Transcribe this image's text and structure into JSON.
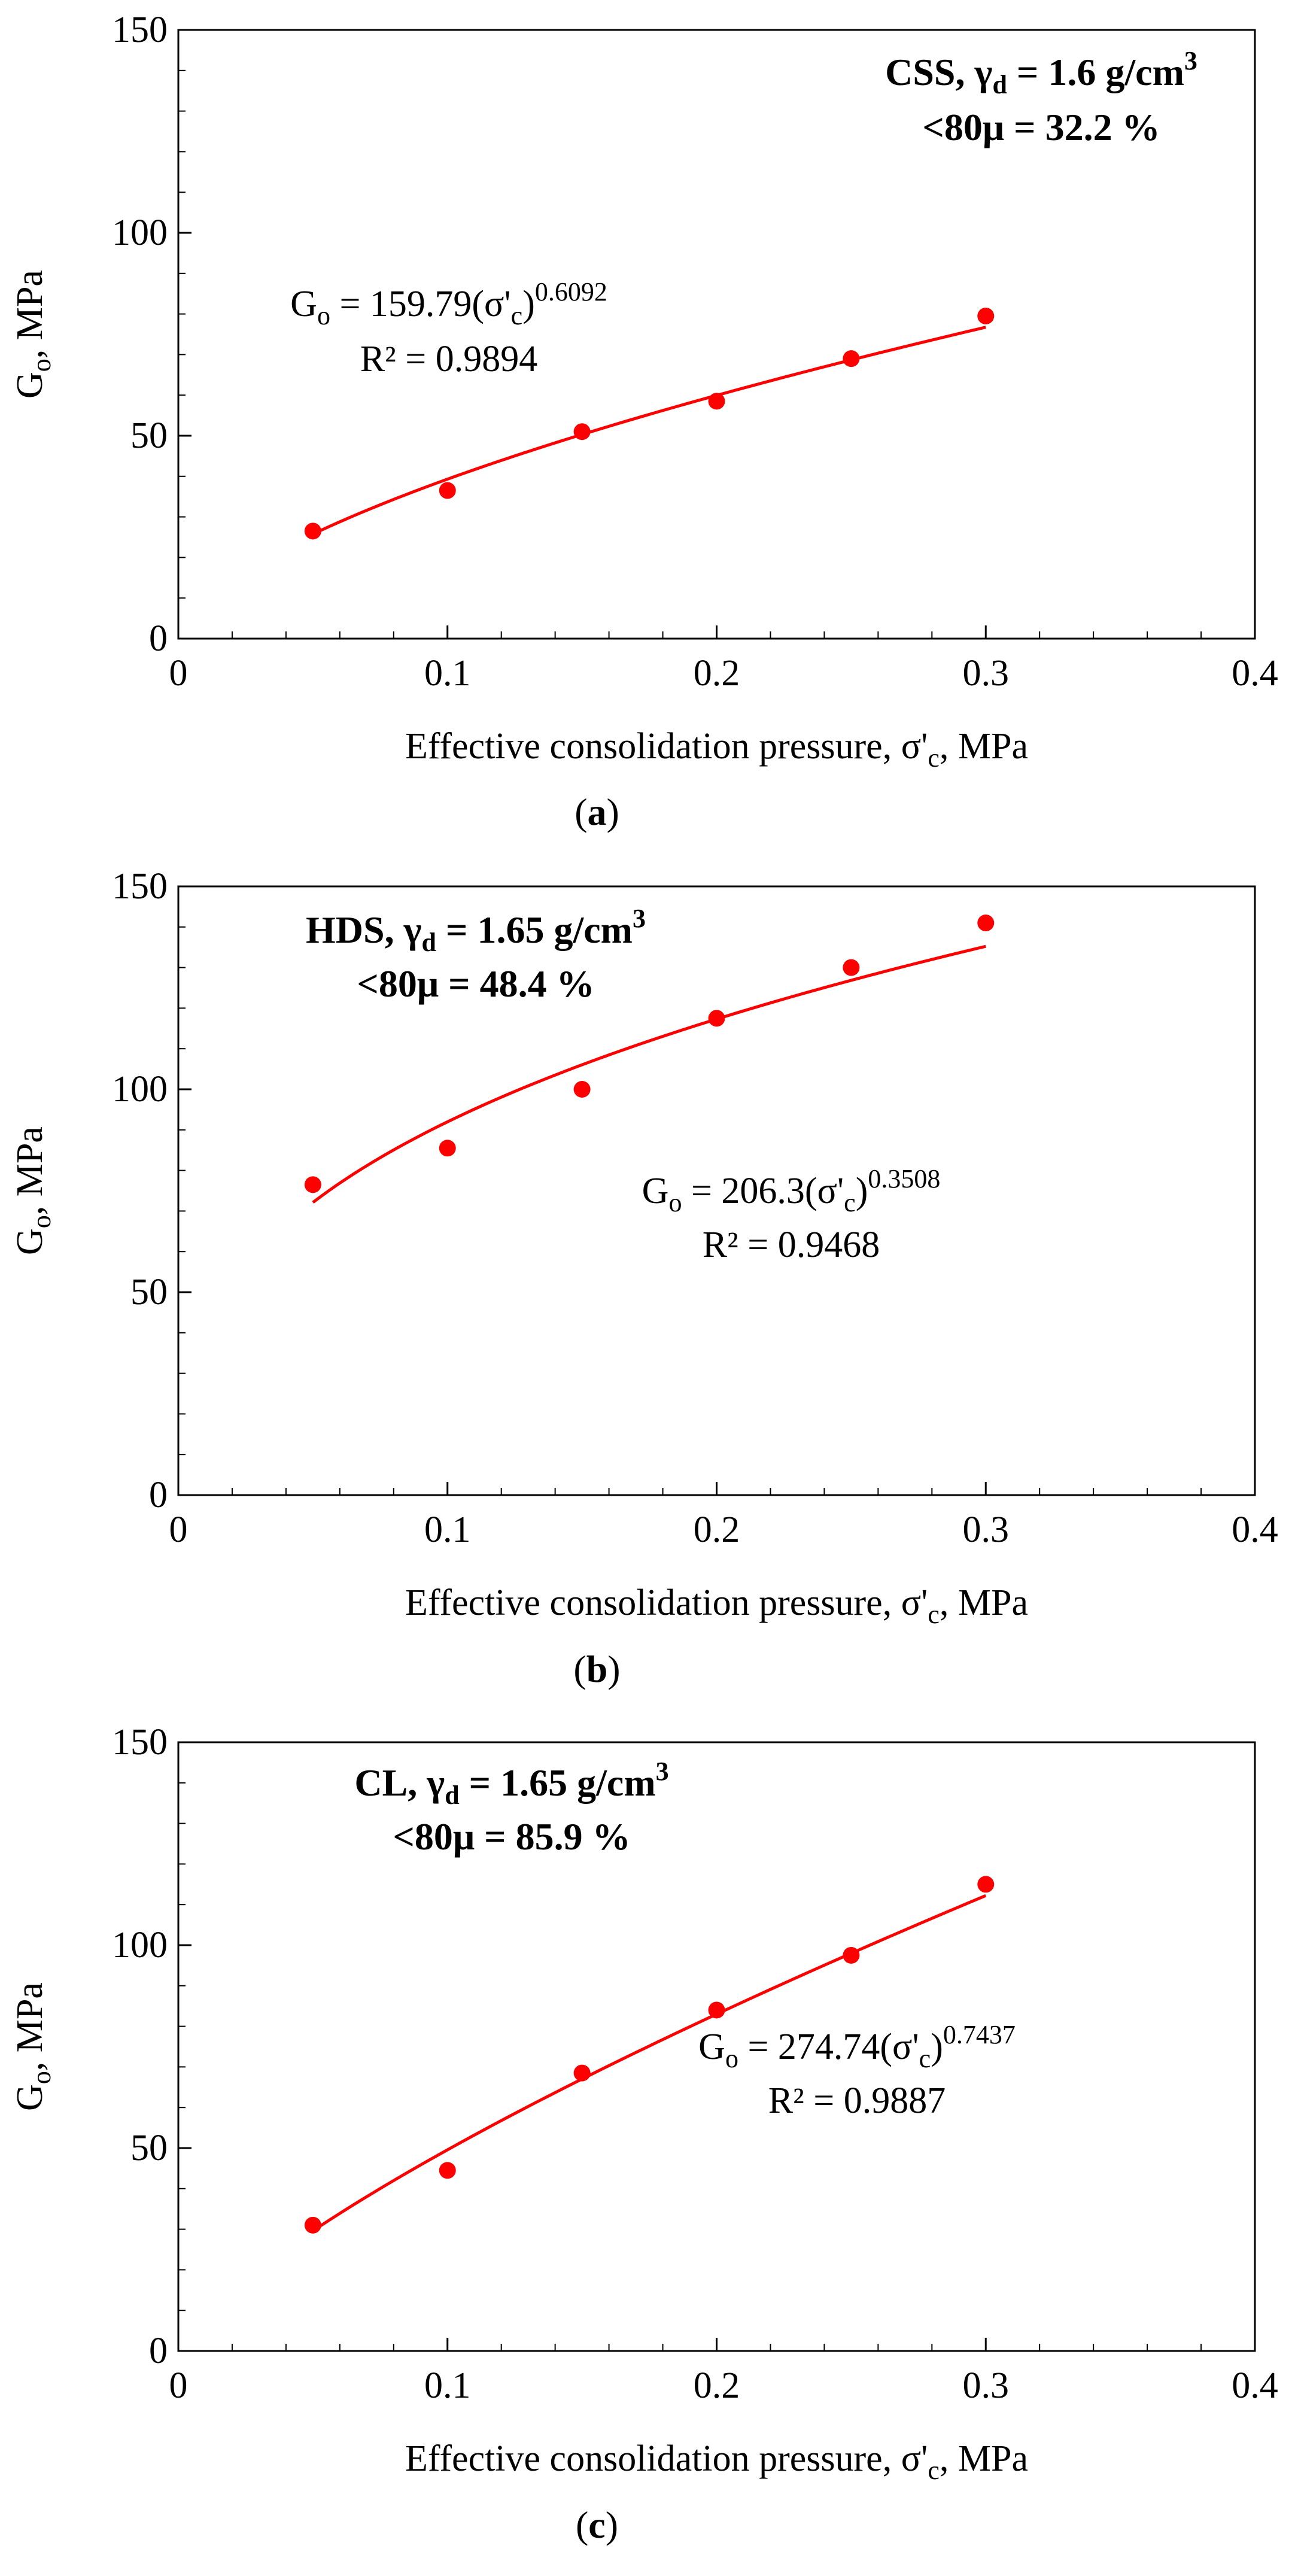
{
  "chart_data": [
    {
      "type": "scatter",
      "panel": "a",
      "caption_label": "a",
      "xlabel_main": "Effective consolidation pressure, σ'",
      "xlabel_sub": "c",
      "xlabel_end": ", MPa",
      "ylabel_main": "G",
      "ylabel_sub": "o",
      "ylabel_end": ", MPa",
      "xlim": [
        0,
        0.4
      ],
      "ylim": [
        0,
        150
      ],
      "xticks": [
        0,
        0.1,
        0.2,
        0.3,
        0.4
      ],
      "xtick_labels": [
        "0",
        "0.1",
        "0.2",
        "0.3",
        "0.4"
      ],
      "yticks": [
        0,
        50,
        100,
        150
      ],
      "ytick_labels": [
        "0",
        "50",
        "100",
        "150"
      ],
      "x": [
        0.05,
        0.1,
        0.15,
        0.2,
        0.25,
        0.3
      ],
      "y": [
        26.5,
        36.5,
        51,
        58.5,
        69,
        79.5
      ],
      "fit": {
        "a": 159.79,
        "b": 0.6092,
        "x_range": [
          0.05,
          0.3
        ]
      },
      "material": {
        "line1": "CSS, γ",
        "sub": "d",
        "line1_end": " = 1.6 g/cm",
        "sup": "3",
        "line2": "<80μ = 32.2 %"
      },
      "equation": {
        "prefix": "G",
        "sub": "o",
        "mid": " = 159.79(σ'",
        "sub2": "c",
        "close": ")",
        "exp": "0.6092",
        "r2": "R² = 0.9894"
      },
      "marker_color": "#ff0000",
      "fit_color": "#ff0000"
    },
    {
      "type": "scatter",
      "panel": "b",
      "caption_label": "b",
      "xlabel_main": "Effective consolidation pressure, σ'",
      "xlabel_sub": "c",
      "xlabel_end": ", MPa",
      "ylabel_main": "G",
      "ylabel_sub": "o",
      "ylabel_end": ", MPa",
      "xlim": [
        0,
        0.4
      ],
      "ylim": [
        0,
        150
      ],
      "xticks": [
        0,
        0.1,
        0.2,
        0.3,
        0.4
      ],
      "xtick_labels": [
        "0",
        "0.1",
        "0.2",
        "0.3",
        "0.4"
      ],
      "yticks": [
        0,
        50,
        100,
        150
      ],
      "ytick_labels": [
        "0",
        "50",
        "100",
        "150"
      ],
      "x": [
        0.05,
        0.1,
        0.15,
        0.2,
        0.25,
        0.3
      ],
      "y": [
        76.5,
        85.5,
        100,
        117.5,
        130,
        141
      ],
      "fit": {
        "a": 206.3,
        "b": 0.3508,
        "x_range": [
          0.05,
          0.3
        ]
      },
      "material": {
        "line1": "HDS, γ",
        "sub": "d",
        "line1_end": " = 1.65 g/cm",
        "sup": "3",
        "line2": "<80μ = 48.4 %"
      },
      "equation": {
        "prefix": "G",
        "sub": "o",
        "mid": " = 206.3(σ'",
        "sub2": "c",
        "close": ")",
        "exp": "0.3508",
        "r2": "R² = 0.9468"
      },
      "marker_color": "#ff0000",
      "fit_color": "#ff0000"
    },
    {
      "type": "scatter",
      "panel": "c",
      "caption_label": "c",
      "xlabel_main": "Effective consolidation pressure, σ'",
      "xlabel_sub": "c",
      "xlabel_end": ", MPa",
      "ylabel_main": "G",
      "ylabel_sub": "o",
      "ylabel_end": ", MPa",
      "xlim": [
        0,
        0.4
      ],
      "ylim": [
        0,
        150
      ],
      "xticks": [
        0,
        0.1,
        0.2,
        0.3,
        0.4
      ],
      "xtick_labels": [
        "0",
        "0.1",
        "0.2",
        "0.3",
        "0.4"
      ],
      "yticks": [
        0,
        50,
        100,
        150
      ],
      "ytick_labels": [
        "0",
        "50",
        "100",
        "150"
      ],
      "x": [
        0.05,
        0.1,
        0.15,
        0.2,
        0.25,
        0.3
      ],
      "y": [
        31,
        44.5,
        68.5,
        84,
        97.5,
        115
      ],
      "fit": {
        "a": 274.74,
        "b": 0.7437,
        "x_range": [
          0.05,
          0.3
        ]
      },
      "material": {
        "line1": "CL, γ",
        "sub": "d",
        "line1_end": " = 1.65 g/cm",
        "sup": "3",
        "line2": "<80μ = 85.9 %"
      },
      "equation": {
        "prefix": "G",
        "sub": "o",
        "mid": " = 274.74(σ'",
        "sub2": "c",
        "close": ")",
        "exp": "0.7437",
        "r2": "R² = 0.9887"
      },
      "marker_color": "#ff0000",
      "fit_color": "#ff0000"
    }
  ]
}
